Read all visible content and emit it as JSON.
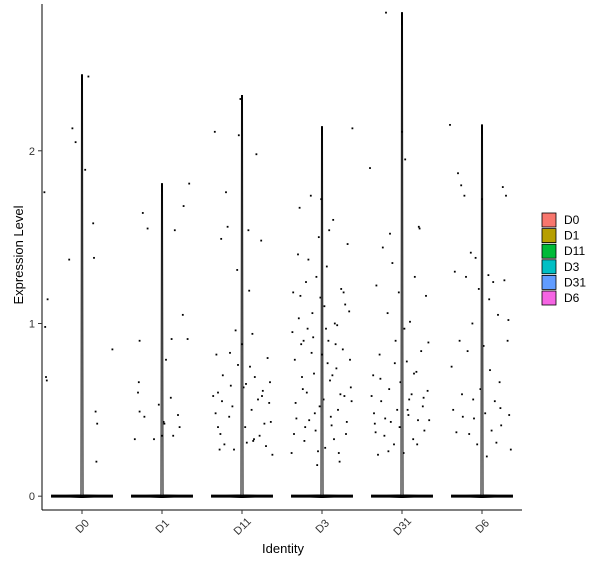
{
  "chart_data": {
    "type": "scatter",
    "subtype": "violin-jitter",
    "xlabel": "Identity",
    "ylabel": "Expression Level",
    "categories": [
      "D0",
      "D1",
      "D11",
      "D3",
      "D31",
      "D6"
    ],
    "ylim": [
      -0.08,
      2.85
    ],
    "yticks": [
      0,
      1,
      2
    ],
    "grid": false,
    "legend_position": "right",
    "legend": [
      {
        "label": "D0",
        "color": "#F8766D"
      },
      {
        "label": "D1",
        "color": "#B79F00"
      },
      {
        "label": "D11",
        "color": "#00BA38"
      },
      {
        "label": "D3",
        "color": "#00BFC4"
      },
      {
        "label": "D31",
        "color": "#619CFF"
      },
      {
        "label": "D6",
        "color": "#F564E3"
      }
    ],
    "series": [
      {
        "name": "D0",
        "max": 2.44,
        "zero_fraction": 0.97,
        "points": [
          [
            -0.47,
            1.76
          ],
          [
            -0.43,
            1.14
          ],
          [
            -0.46,
            0.98
          ],
          [
            -0.45,
            0.69
          ],
          [
            -0.44,
            0.67
          ],
          [
            -0.16,
            1.37
          ],
          [
            -0.12,
            2.13
          ],
          [
            -0.08,
            2.05
          ],
          [
            0.04,
            1.89
          ],
          [
            0.08,
            2.43
          ],
          [
            0.14,
            1.58
          ],
          [
            0.15,
            1.38
          ],
          [
            0.17,
            0.49
          ],
          [
            0.19,
            0.42
          ],
          [
            0.18,
            0.2
          ],
          [
            0.38,
            0.85
          ]
        ]
      },
      {
        "name": "D1",
        "max": 1.81,
        "zero_fraction": 0.98,
        "points": [
          [
            -0.34,
            0.33
          ],
          [
            -0.3,
            0.6
          ],
          [
            -0.29,
            0.66
          ],
          [
            -0.28,
            0.9
          ],
          [
            -0.28,
            0.49
          ],
          [
            -0.24,
            1.64
          ],
          [
            -0.22,
            0.46
          ],
          [
            -0.18,
            1.55
          ],
          [
            -0.1,
            0.33
          ],
          [
            -0.04,
            0.53
          ],
          [
            0.0,
            0.35
          ],
          [
            0.02,
            0.43
          ],
          [
            0.03,
            0.42
          ],
          [
            0.05,
            0.79
          ],
          [
            0.11,
            0.57
          ],
          [
            0.12,
            0.91
          ],
          [
            0.14,
            0.35
          ],
          [
            0.16,
            1.54
          ],
          [
            0.2,
            0.47
          ],
          [
            0.22,
            0.4
          ],
          [
            0.26,
            1.05
          ],
          [
            0.27,
            1.68
          ],
          [
            0.32,
            0.91
          ],
          [
            0.34,
            1.81
          ]
        ]
      },
      {
        "name": "D11",
        "max": 2.32,
        "zero_fraction": 0.9,
        "points": [
          [
            -0.34,
            2.11
          ],
          [
            -0.32,
            0.82
          ],
          [
            -0.3,
            0.6
          ],
          [
            -0.3,
            0.4
          ],
          [
            -0.28,
            0.27
          ],
          [
            -0.26,
            1.49
          ],
          [
            -0.24,
            0.7
          ],
          [
            -0.22,
            0.3
          ],
          [
            -0.2,
            1.76
          ],
          [
            -0.18,
            1.56
          ],
          [
            -0.16,
            0.46
          ],
          [
            -0.14,
            0.64
          ],
          [
            -0.12,
            0.52
          ],
          [
            -0.1,
            0.27
          ],
          [
            -0.08,
            0.96
          ],
          [
            -0.06,
            1.31
          ],
          [
            -0.04,
            2.09
          ],
          [
            -0.02,
            2.3
          ],
          [
            0.0,
            0.88
          ],
          [
            0.02,
            0.63
          ],
          [
            0.04,
            0.4
          ],
          [
            0.06,
            0.31
          ],
          [
            0.08,
            1.54
          ],
          [
            0.1,
            0.75
          ],
          [
            0.12,
            0.5
          ],
          [
            0.14,
            0.32
          ],
          [
            0.16,
            0.69
          ],
          [
            0.18,
            1.98
          ],
          [
            0.2,
            0.56
          ],
          [
            0.22,
            0.35
          ],
          [
            0.24,
            1.48
          ],
          [
            0.26,
            0.61
          ],
          [
            0.28,
            0.42
          ],
          [
            0.3,
            0.29
          ],
          [
            0.32,
            0.8
          ],
          [
            0.34,
            0.54
          ],
          [
            0.36,
            0.43
          ],
          [
            0.38,
            0.24
          ],
          [
            -0.33,
            0.48
          ],
          [
            -0.25,
            0.55
          ],
          [
            -0.15,
            0.83
          ],
          [
            -0.05,
            0.76
          ],
          [
            0.05,
            0.65
          ],
          [
            0.15,
            0.33
          ],
          [
            0.25,
            0.58
          ],
          [
            0.35,
            0.66
          ],
          [
            -0.36,
            0.58
          ],
          [
            -0.27,
            0.36
          ],
          [
            0.09,
            1.19
          ],
          [
            0.13,
            0.94
          ]
        ]
      },
      {
        "name": "D3",
        "max": 2.14,
        "zero_fraction": 0.85,
        "points": [
          [
            -0.38,
            0.25
          ],
          [
            -0.36,
            1.18
          ],
          [
            -0.34,
            0.79
          ],
          [
            -0.32,
            0.45
          ],
          [
            -0.3,
            1.4
          ],
          [
            -0.28,
            1.67
          ],
          [
            -0.26,
            0.88
          ],
          [
            -0.24,
            0.62
          ],
          [
            -0.22,
            0.32
          ],
          [
            -0.2,
            1.24
          ],
          [
            -0.18,
            0.97
          ],
          [
            -0.16,
            0.44
          ],
          [
            -0.14,
            1.74
          ],
          [
            -0.12,
            1.06
          ],
          [
            -0.1,
            0.71
          ],
          [
            -0.08,
            0.38
          ],
          [
            -0.06,
            0.18
          ],
          [
            -0.04,
            1.5
          ],
          [
            -0.02,
            1.15
          ],
          [
            0.0,
            0.82
          ],
          [
            0.02,
            0.56
          ],
          [
            0.04,
            0.28
          ],
          [
            0.06,
            1.33
          ],
          [
            0.08,
            0.9
          ],
          [
            0.1,
            0.67
          ],
          [
            0.12,
            0.41
          ],
          [
            0.14,
            1.6
          ],
          [
            0.16,
            1.0
          ],
          [
            0.18,
            0.74
          ],
          [
            0.2,
            0.5
          ],
          [
            0.22,
            0.2
          ],
          [
            0.24,
            1.2
          ],
          [
            0.26,
            0.85
          ],
          [
            0.28,
            0.58
          ],
          [
            0.3,
            0.36
          ],
          [
            0.32,
            1.46
          ],
          [
            0.34,
            1.07
          ],
          [
            0.36,
            0.63
          ],
          [
            0.38,
            2.13
          ],
          [
            -0.37,
            0.95
          ],
          [
            -0.33,
            0.54
          ],
          [
            -0.29,
            1.03
          ],
          [
            -0.25,
            0.69
          ],
          [
            -0.21,
            0.4
          ],
          [
            -0.17,
            1.37
          ],
          [
            -0.13,
            0.83
          ],
          [
            -0.09,
            0.48
          ],
          [
            -0.05,
            0.26
          ],
          [
            -0.01,
            1.72
          ],
          [
            0.03,
            1.1
          ],
          [
            0.07,
            0.77
          ],
          [
            0.11,
            0.46
          ],
          [
            0.15,
            0.33
          ],
          [
            0.19,
            0.99
          ],
          [
            0.23,
            0.59
          ],
          [
            0.27,
            1.18
          ],
          [
            0.31,
            0.43
          ],
          [
            0.35,
            0.79
          ],
          [
            -0.35,
            0.36
          ],
          [
            -0.27,
            1.16
          ],
          [
            -0.19,
            0.6
          ],
          [
            -0.11,
            0.92
          ],
          [
            -0.03,
            0.52
          ],
          [
            0.05,
            0.97
          ],
          [
            0.13,
            0.7
          ],
          [
            0.21,
            0.25
          ],
          [
            0.29,
            1.11
          ],
          [
            0.37,
            0.55
          ],
          [
            -0.23,
            0.9
          ],
          [
            0.09,
            1.54
          ],
          [
            -0.07,
            1.27
          ],
          [
            0.17,
            0.88
          ]
        ]
      },
      {
        "name": "D31",
        "max": 2.8,
        "zero_fraction": 0.88,
        "points": [
          [
            -0.4,
            1.9
          ],
          [
            -0.36,
            0.7
          ],
          [
            -0.34,
            0.42
          ],
          [
            -0.32,
            1.22
          ],
          [
            -0.3,
            0.24
          ],
          [
            -0.28,
            0.82
          ],
          [
            -0.26,
            0.55
          ],
          [
            -0.24,
            1.44
          ],
          [
            -0.22,
            0.35
          ],
          [
            -0.2,
            2.8
          ],
          [
            -0.18,
            1.06
          ],
          [
            -0.16,
            0.62
          ],
          [
            -0.14,
            0.43
          ],
          [
            -0.12,
            1.35
          ],
          [
            -0.1,
            0.3
          ],
          [
            -0.08,
            0.9
          ],
          [
            -0.06,
            0.5
          ],
          [
            -0.04,
            1.18
          ],
          [
            -0.02,
            0.66
          ],
          [
            0.0,
            2.11
          ],
          [
            0.02,
            0.25
          ],
          [
            0.04,
            1.95
          ],
          [
            0.06,
            0.78
          ],
          [
            0.08,
            0.47
          ],
          [
            0.1,
            1.01
          ],
          [
            0.12,
            0.59
          ],
          [
            0.14,
            0.33
          ],
          [
            0.16,
            1.27
          ],
          [
            0.18,
            0.72
          ],
          [
            0.2,
            0.44
          ],
          [
            0.22,
            1.55
          ],
          [
            0.24,
            0.84
          ],
          [
            0.26,
            0.52
          ],
          [
            0.28,
            0.38
          ],
          [
            0.3,
            1.16
          ],
          [
            0.32,
            0.61
          ],
          [
            0.34,
            0.44
          ],
          [
            -0.38,
            0.58
          ],
          [
            -0.33,
            0.37
          ],
          [
            -0.27,
            0.68
          ],
          [
            -0.21,
            0.45
          ],
          [
            -0.15,
            1.52
          ],
          [
            -0.09,
            0.77
          ],
          [
            -0.03,
            0.4
          ],
          [
            0.03,
            0.97
          ],
          [
            0.09,
            0.56
          ],
          [
            0.15,
            0.71
          ],
          [
            0.21,
            1.56
          ],
          [
            0.27,
            0.57
          ],
          [
            0.33,
            0.89
          ],
          [
            -0.35,
            0.48
          ],
          [
            -0.17,
            0.26
          ],
          [
            0.07,
            0.5
          ],
          [
            0.19,
            0.3
          ]
        ]
      },
      {
        "name": "D6",
        "max": 2.15,
        "zero_fraction": 0.92,
        "points": [
          [
            -0.4,
            2.15
          ],
          [
            -0.36,
            0.5
          ],
          [
            -0.34,
            1.3
          ],
          [
            -0.32,
            0.37
          ],
          [
            -0.3,
            1.87
          ],
          [
            -0.28,
            0.9
          ],
          [
            -0.26,
            1.8
          ],
          [
            -0.24,
            0.46
          ],
          [
            -0.22,
            1.74
          ],
          [
            -0.2,
            1.27
          ],
          [
            -0.18,
            0.84
          ],
          [
            -0.16,
            0.36
          ],
          [
            -0.14,
            1.41
          ],
          [
            -0.12,
            1.0
          ],
          [
            -0.1,
            0.45
          ],
          [
            -0.08,
            1.38
          ],
          [
            -0.06,
            0.3
          ],
          [
            -0.04,
            1.2
          ],
          [
            -0.02,
            0.62
          ],
          [
            0.0,
            1.72
          ],
          [
            0.02,
            0.87
          ],
          [
            0.04,
            0.48
          ],
          [
            0.06,
            0.23
          ],
          [
            0.08,
            1.28
          ],
          [
            0.1,
            0.73
          ],
          [
            0.12,
            0.38
          ],
          [
            0.14,
            1.24
          ],
          [
            0.16,
            0.55
          ],
          [
            0.18,
            0.31
          ],
          [
            0.2,
            1.05
          ],
          [
            0.22,
            0.66
          ],
          [
            0.24,
            0.41
          ],
          [
            0.26,
            1.79
          ],
          [
            0.28,
            1.25
          ],
          [
            0.3,
            1.74
          ],
          [
            0.32,
            0.9
          ],
          [
            0.34,
            0.47
          ],
          [
            0.36,
            0.27
          ],
          [
            -0.38,
            0.75
          ],
          [
            -0.25,
            0.59
          ],
          [
            -0.11,
            0.56
          ],
          [
            0.09,
            1.14
          ],
          [
            0.23,
            0.51
          ],
          [
            0.33,
            1.02
          ]
        ]
      }
    ]
  }
}
